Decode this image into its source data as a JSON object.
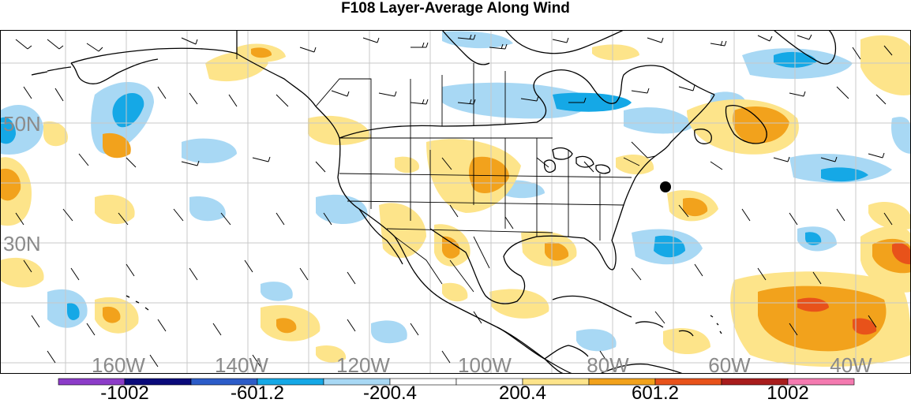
{
  "title": "F108 Layer-Average Along Wind",
  "longitude_labels": [
    "160W",
    "140W",
    "120W",
    "100W",
    "80W",
    "60W",
    "40W"
  ],
  "latitude_labels": [
    "50N",
    "30N"
  ],
  "colorbar": {
    "colors": [
      "#8c3cc8",
      "#0a0a7a",
      "#2c5cc8",
      "#15a8e6",
      "#a8d8f4",
      "#ffffff",
      "#ffffff",
      "#fde48a",
      "#f2a21c",
      "#e8521a",
      "#a81c1c",
      "#f47ab0"
    ],
    "labels": [
      "-1002",
      "-601.2",
      "-200.4",
      "200.4",
      "601.2",
      "1002"
    ]
  },
  "station_marker": "filled-circle"
}
